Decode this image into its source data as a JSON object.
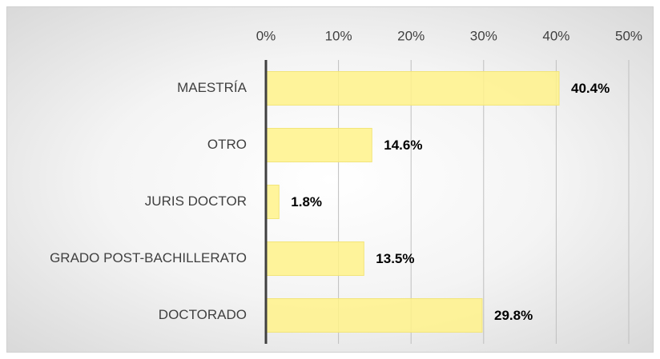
{
  "chart_data": {
    "type": "bar",
    "orientation": "horizontal",
    "categories": [
      "MAESTRÍA",
      "OTRO",
      "JURIS DOCTOR",
      "GRADO POST-BACHILLERATO",
      "DOCTORADO"
    ],
    "values": [
      40.4,
      14.6,
      1.8,
      13.5,
      29.8
    ],
    "value_labels": [
      "40.4%",
      "14.6%",
      "1.8%",
      "13.5%",
      "29.8%"
    ],
    "color": "#fff28a",
    "xlim": [
      0,
      50
    ],
    "xticks": [
      {
        "value": 0,
        "label": "0%"
      },
      {
        "value": 10,
        "label": "10%"
      },
      {
        "value": 20,
        "label": "20%"
      },
      {
        "value": 30,
        "label": "30%"
      },
      {
        "value": 40,
        "label": "40%"
      },
      {
        "value": 50,
        "label": "50%"
      }
    ],
    "grid": true
  }
}
